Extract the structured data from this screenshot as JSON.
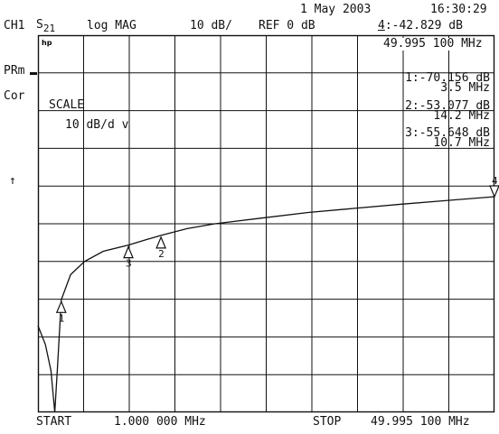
{
  "header": {
    "date": "1 May 2003",
    "time": "16:30:29",
    "channel": "CH1",
    "parameter": "S",
    "parameter_sub": "21",
    "format": "log MAG",
    "scale": "10 dB/",
    "reference": "REF 0 dB",
    "active_marker_num": "4",
    "active_marker_value": ":-42.829 dB",
    "active_marker_freq": "49.995 100 MHz"
  },
  "side": {
    "prm": "PRm",
    "cor": "Cor",
    "ref_arrow": "↑"
  },
  "scale_box": {
    "title": "SCALE",
    "value": "10 dB/d v"
  },
  "markers": [
    {
      "id": "1",
      "level": "1:-70.156 dB",
      "freq": "3.5 MHz"
    },
    {
      "id": "2",
      "level": "2:-53.077 dB",
      "freq": "14.2 MHz"
    },
    {
      "id": "3",
      "level": "3:-55.648 dB",
      "freq": "10.7 MHz"
    }
  ],
  "footer": {
    "start_label": "START",
    "start_value": "1.000 000 MHz",
    "stop_label": "STOP",
    "stop_value": "49.995 100 MHz"
  },
  "logo": "hp",
  "colors": {
    "ink": "#111111",
    "background": "#ffffff"
  },
  "trace": {
    "x_mhz": [
      1.0,
      1.8,
      2.4,
      2.8,
      3.1,
      3.5,
      4.5,
      6,
      8,
      10.7,
      12.5,
      14.2,
      17,
      20,
      25,
      30,
      35,
      40,
      45,
      49.995
    ],
    "y_db": [
      -77,
      -82,
      -89,
      -100,
      -88,
      -70.156,
      -63.5,
      -60,
      -57.3,
      -55.648,
      -54.3,
      -53.077,
      -51.3,
      -50,
      -48.5,
      -47,
      -45.9,
      -44.8,
      -43.8,
      -42.829
    ]
  },
  "marker_points": [
    {
      "label": "1",
      "x_mhz": 3.5,
      "y_db": -70.156
    },
    {
      "label": "2",
      "x_mhz": 14.2,
      "y_db": -53.077
    },
    {
      "label": "3",
      "x_mhz": 10.7,
      "y_db": -55.648
    },
    {
      "label": "4",
      "x_mhz": 49.995,
      "y_db": -42.829
    }
  ]
}
